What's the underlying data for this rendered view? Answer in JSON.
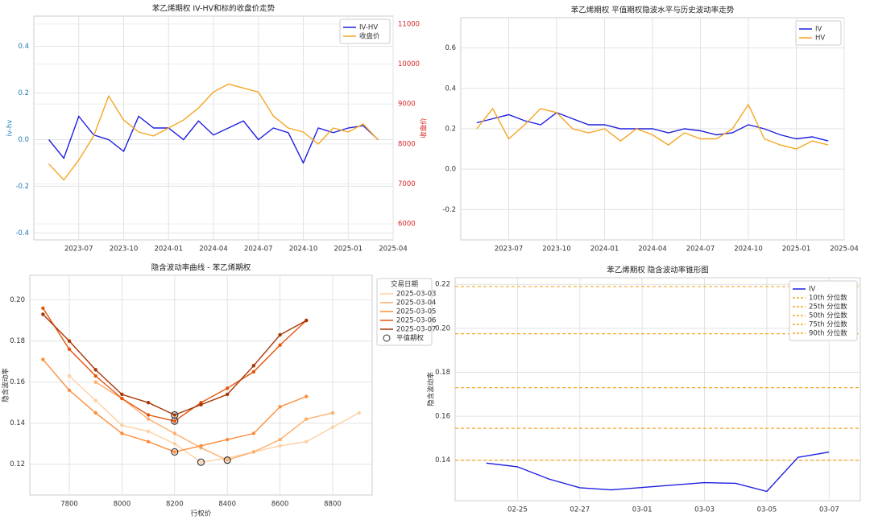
{
  "chart_data": [
    {
      "type": "line",
      "title": "苯乙烯期权 IV-HV和标的收盘价走势",
      "ylabel": "iv-hv",
      "y2label": "收盘价",
      "x": [
        "2023-05",
        "2023-06",
        "2023-07",
        "2023-08",
        "2023-09",
        "2023-10",
        "2023-11",
        "2023-12",
        "2024-01",
        "2024-02",
        "2024-03",
        "2024-04",
        "2024-05",
        "2024-06",
        "2024-07",
        "2024-08",
        "2024-09",
        "2024-10",
        "2024-11",
        "2024-12",
        "2025-01",
        "2025-02",
        "2025-03"
      ],
      "series": [
        {
          "name": "IV-HV",
          "color": "#1f1fe0",
          "values": [
            0.0,
            -0.08,
            0.1,
            0.02,
            0.0,
            -0.05,
            0.1,
            0.05,
            0.05,
            0.0,
            0.08,
            0.02,
            0.05,
            0.08,
            0.0,
            0.05,
            0.03,
            -0.1,
            0.05,
            0.03,
            0.05,
            0.06,
            0.0
          ]
        },
        {
          "name": "收盘价",
          "color": "#f5a623",
          "axis": "y2",
          "values": [
            7500,
            7100,
            7600,
            8200,
            9200,
            8600,
            8300,
            8200,
            8400,
            8600,
            8900,
            9300,
            9500,
            9400,
            9300,
            8700,
            8400,
            8300,
            8000,
            8400,
            8300,
            8500,
            8100
          ]
        }
      ],
      "xlim": [
        "2023-04",
        "2025-04"
      ],
      "xticks": [
        "2023-07",
        "2023-10",
        "2024-01",
        "2024-04",
        "2024-07",
        "2024-10",
        "2025-01",
        "2025-04"
      ],
      "ylim": [
        -0.43,
        0.53
      ],
      "yticks": [
        -0.4,
        -0.2,
        {
          "value": 0,
          "label": "0.0"
        },
        0.2,
        0.4
      ],
      "y2lim": [
        5600,
        11200
      ],
      "y2ticks": [
        6000,
        7000,
        8000,
        9000,
        10000,
        11000
      ],
      "yaxis_color": "#1f77b4",
      "y2axis_color": "#d62728",
      "grid": true,
      "legend": "upper right"
    },
    {
      "type": "line",
      "title": "苯乙烯期权 平值期权隐波水平与历史波动率走势",
      "x": [
        "2023-05",
        "2023-06",
        "2023-07",
        "2023-08",
        "2023-09",
        "2023-10",
        "2023-11",
        "2023-12",
        "2024-01",
        "2024-02",
        "2024-03",
        "2024-04",
        "2024-05",
        "2024-06",
        "2024-07",
        "2024-08",
        "2024-09",
        "2024-10",
        "2024-11",
        "2024-12",
        "2025-01",
        "2025-02",
        "2025-03"
      ],
      "series": [
        {
          "name": "IV",
          "color": "#1f1fe0",
          "values": [
            0.23,
            0.25,
            0.27,
            0.24,
            0.22,
            0.28,
            0.25,
            0.22,
            0.22,
            0.2,
            0.2,
            0.2,
            0.18,
            0.2,
            0.19,
            0.17,
            0.18,
            0.22,
            0.2,
            0.17,
            0.15,
            0.16,
            0.14
          ]
        },
        {
          "name": "HV",
          "color": "#f5a623",
          "values": [
            0.2,
            0.3,
            0.15,
            0.22,
            0.3,
            0.28,
            0.2,
            0.18,
            0.2,
            0.14,
            0.2,
            0.17,
            0.12,
            0.18,
            0.15,
            0.15,
            0.2,
            0.32,
            0.15,
            0.12,
            0.1,
            0.14,
            0.12
          ]
        }
      ],
      "xlim": [
        "2023-04",
        "2025-04"
      ],
      "xticks": [
        "2023-07",
        "2023-10",
        "2024-01",
        "2024-04",
        "2024-07",
        "2024-10",
        "2025-01",
        "2025-04"
      ],
      "ylim": [
        -0.35,
        0.75
      ],
      "yticks": [
        -0.2,
        {
          "value": 0,
          "label": "0.0"
        },
        0.2,
        0.4,
        0.6
      ],
      "grid": true,
      "legend": "upper right"
    },
    {
      "type": "line",
      "title": "隐含波动率曲线 - 苯乙烯期权",
      "xlabel": "行权价",
      "ylabel": "隐含波动率",
      "legend_title": "交易日期",
      "series": [
        {
          "name": "2025-03-03",
          "color": "#fdd0a2",
          "markers": true,
          "x": [
            7800,
            7900,
            8000,
            8100,
            8200,
            8300,
            8400,
            8500,
            8600,
            8700,
            8800,
            8900
          ],
          "values": [
            0.163,
            0.151,
            0.139,
            0.136,
            0.13,
            0.121,
            0.123,
            0.126,
            0.129,
            0.131,
            0.138,
            0.145
          ]
        },
        {
          "name": "2025-03-04",
          "color": "#fdae6b",
          "markers": true,
          "x": [
            7900,
            8000,
            8100,
            8200,
            8300,
            8400,
            8500,
            8600,
            8700,
            8800
          ],
          "values": [
            0.16,
            0.152,
            0.142,
            0.135,
            0.128,
            0.122,
            0.126,
            0.132,
            0.142,
            0.145
          ]
        },
        {
          "name": "2025-03-05",
          "color": "#fd8d3c",
          "markers": true,
          "x": [
            7700,
            7800,
            7900,
            8000,
            8100,
            8200,
            8300,
            8400,
            8500,
            8600,
            8700
          ],
          "values": [
            0.171,
            0.156,
            0.145,
            0.135,
            0.131,
            0.126,
            0.129,
            0.132,
            0.135,
            0.148,
            0.153
          ]
        },
        {
          "name": "2025-03-06",
          "color": "#e6550d",
          "markers": true,
          "x": [
            7700,
            7800,
            7900,
            8000,
            8100,
            8200,
            8300,
            8400,
            8500,
            8600,
            8700
          ],
          "values": [
            0.196,
            0.176,
            0.163,
            0.152,
            0.144,
            0.141,
            0.15,
            0.157,
            0.165,
            0.178,
            0.19
          ]
        },
        {
          "name": "2025-03-07",
          "color": "#a63603",
          "markers": true,
          "x": [
            7700,
            7800,
            7900,
            8000,
            8100,
            8200,
            8300,
            8400,
            8500,
            8600,
            8700
          ],
          "values": [
            0.193,
            0.18,
            0.166,
            0.154,
            0.15,
            0.144,
            0.149,
            0.154,
            0.168,
            0.183,
            0.19
          ]
        },
        {
          "name": "平值期权",
          "type": "scatter",
          "color": "#333333",
          "x": [
            8300,
            8400,
            8200,
            8200,
            8200
          ],
          "values": [
            0.121,
            0.122,
            0.126,
            0.141,
            0.144
          ]
        }
      ],
      "xlim": [
        7650,
        8950
      ],
      "xticks": [
        7800,
        8000,
        8200,
        8400,
        8600,
        8800
      ],
      "ylim": [
        0.105,
        0.212
      ],
      "yticks": [
        0.12,
        0.14,
        0.16,
        0.18,
        {
          "value": 0.2,
          "label": "0.20"
        }
      ],
      "grid": true,
      "legend": "outside right"
    },
    {
      "type": "line",
      "title": "苯乙烯期权 隐含波动率锥形图",
      "ylabel": "隐含波动率",
      "x": [
        "02-24",
        "02-25",
        "02-26",
        "02-27",
        "02-28",
        "03-03",
        "03-04",
        "03-05",
        "03-06",
        "03-07"
      ],
      "series": [
        {
          "name": "IV",
          "color": "#1f1fe0",
          "values": [
            0.1387,
            0.137,
            0.1315,
            0.1275,
            0.1265,
            0.1298,
            0.1295,
            0.1258,
            0.1413,
            0.1437
          ]
        }
      ],
      "hlines": [
        {
          "name": "10th 分位数",
          "value": 0.14,
          "color": "#f5a623"
        },
        {
          "name": "25th 分位数",
          "value": 0.1545,
          "color": "#f5a623"
        },
        {
          "name": "50th 分位数",
          "value": 0.173,
          "color": "#f5a623"
        },
        {
          "name": "75th 分位数",
          "value": 0.1975,
          "color": "#f5a623"
        },
        {
          "name": "90th 分位数",
          "value": 0.219,
          "color": "#f5a623"
        }
      ],
      "xlim": [
        "02-23",
        "03-08"
      ],
      "xticks": [
        "02-25",
        "02-27",
        "03-01",
        "03-03",
        "03-05",
        "03-07"
      ],
      "ylim": [
        0.1216,
        0.223
      ],
      "yticks": [
        0.14,
        0.16,
        0.18,
        {
          "value": 0.2,
          "label": "0.20"
        },
        0.22
      ],
      "grid": true,
      "legend": "upper right"
    }
  ]
}
